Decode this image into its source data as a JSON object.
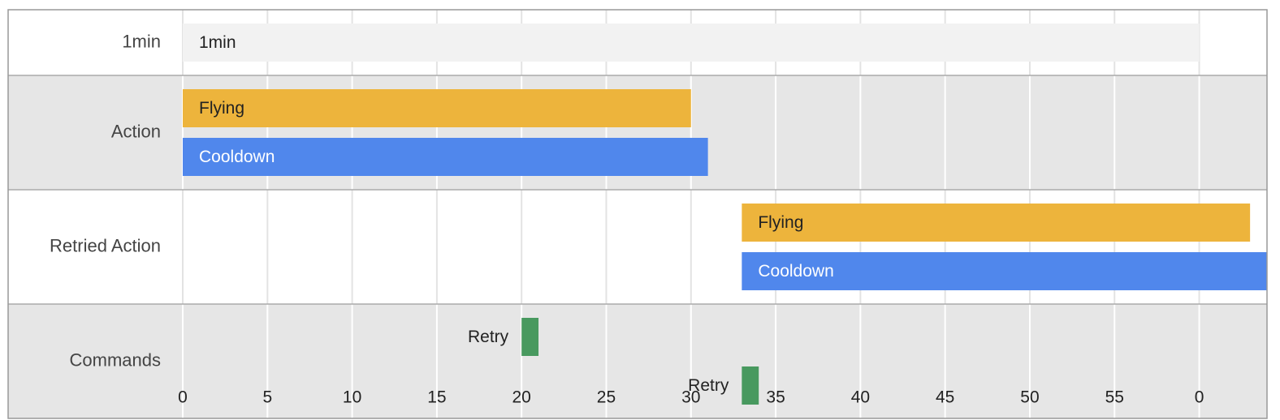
{
  "chart_data": {
    "type": "timeline",
    "xlim": [
      0,
      64
    ],
    "xticks": [
      0,
      5,
      10,
      15,
      20,
      25,
      30,
      35,
      40,
      45,
      50,
      55,
      {
        "value": 60,
        "label": "0"
      }
    ],
    "grid": true,
    "rows": [
      {
        "label": "1min",
        "bars": [
          {
            "label": "1min",
            "start": 0,
            "end": 60,
            "color": "#f2f2f2",
            "label_color": "#222222"
          }
        ]
      },
      {
        "label": "Action",
        "bars": [
          {
            "label": "Flying",
            "start": 0,
            "end": 30,
            "color": "#edb43c",
            "label_color": "#222222"
          },
          {
            "label": "Cooldown",
            "start": 0,
            "end": 31,
            "color": "#5087ec",
            "label_color": "#ffffff"
          }
        ]
      },
      {
        "label": "Retried Action",
        "bars": [
          {
            "label": "Flying",
            "start": 33,
            "end": 63,
            "color": "#edb43c",
            "label_color": "#222222"
          },
          {
            "label": "Cooldown",
            "start": 33,
            "end": 64,
            "color": "#5087ec",
            "label_color": "#ffffff"
          }
        ]
      },
      {
        "label": "Commands",
        "bars": [
          {
            "label": "Retry",
            "start": 20,
            "end": 21,
            "color": "#48995f",
            "label_color": "#222222"
          },
          {
            "label": "Retry",
            "start": 33,
            "end": 34,
            "color": "#48995f",
            "label_color": "#222222"
          }
        ]
      }
    ]
  }
}
